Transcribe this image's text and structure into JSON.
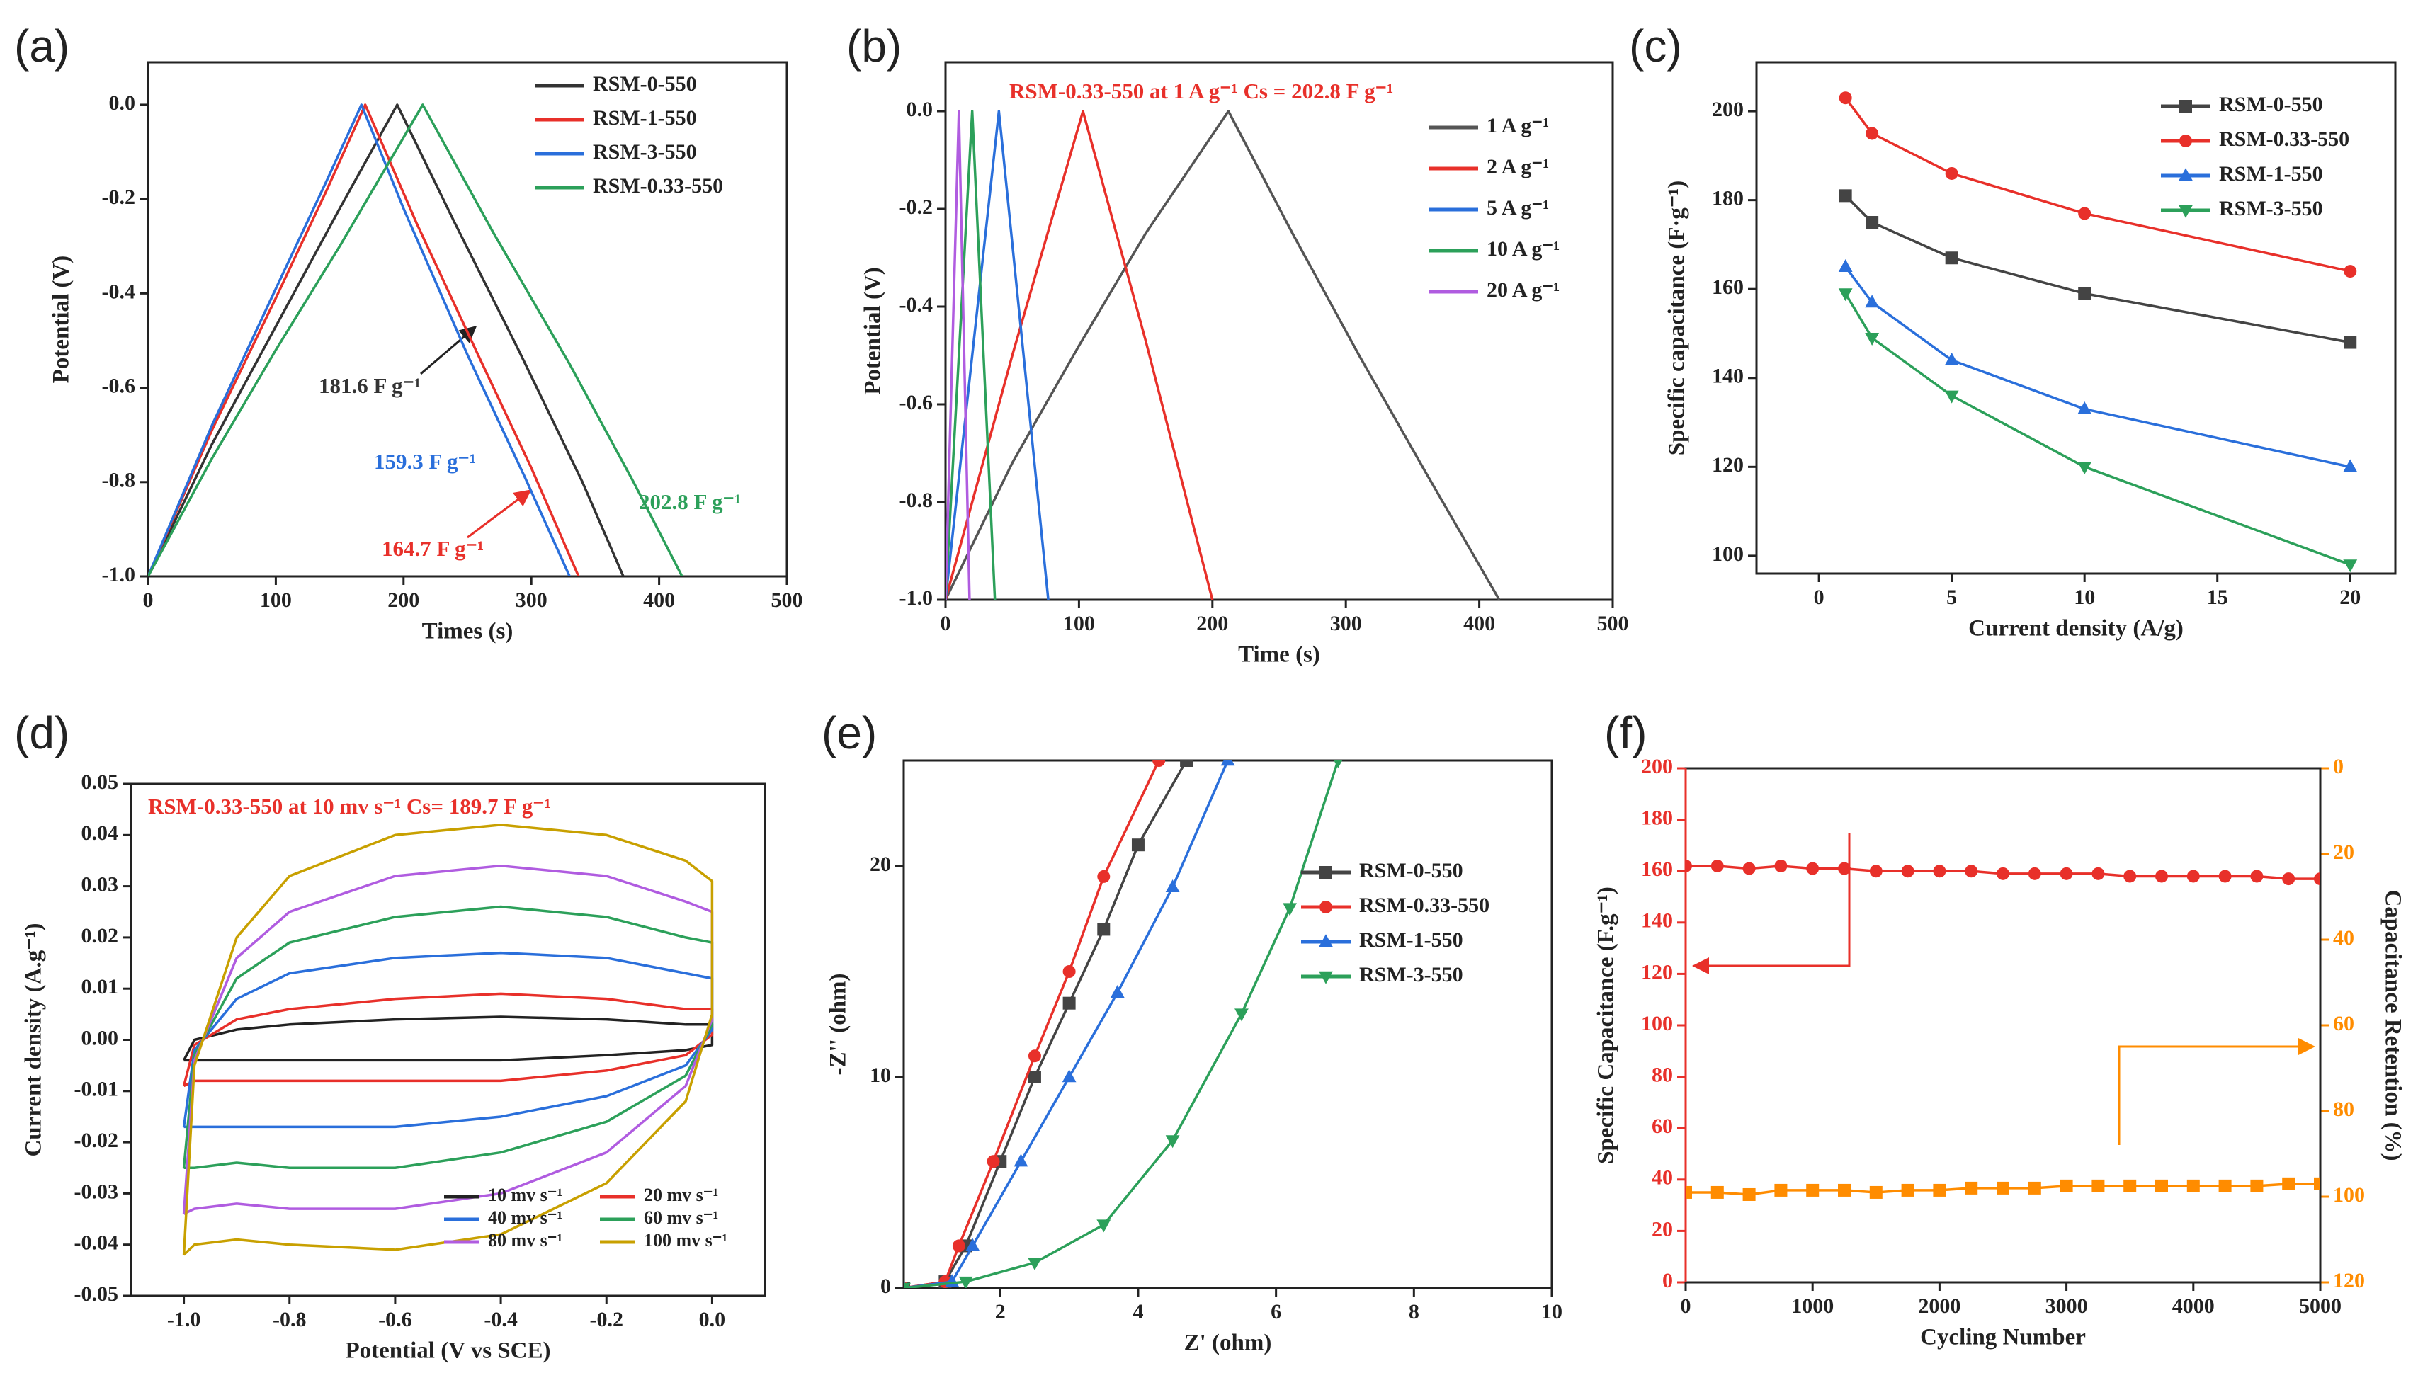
{
  "chart_data": [
    {
      "type": "line",
      "label": "(a)",
      "xlabel": "Times (s)",
      "ylabel": "Potential (V)",
      "xlim": [
        0,
        500
      ],
      "xticks": [
        0,
        100,
        200,
        300,
        400,
        500
      ],
      "ylim": [
        -1.0,
        0.09
      ],
      "yticks": [
        {
          "value": -1.0,
          "label": "-1.0"
        },
        -0.8,
        -0.6,
        -0.4,
        -0.2,
        {
          "value": 0,
          "label": "0.0"
        }
      ],
      "series": [
        {
          "name": "RSM-0-550",
          "color": "#333333",
          "x": [
            0,
            50,
            100,
            150,
            195,
            240,
            290,
            340,
            372
          ],
          "values": [
            -1,
            -0.72,
            -0.47,
            -0.22,
            0,
            -0.25,
            -0.52,
            -0.8,
            -1
          ]
        },
        {
          "name": "RSM-1-550",
          "color": "#e8302a",
          "x": [
            0,
            50,
            100,
            140,
            170,
            210,
            260,
            300,
            337
          ],
          "values": [
            -1,
            -0.69,
            -0.41,
            -0.18,
            0,
            -0.25,
            -0.54,
            -0.77,
            -1
          ]
        },
        {
          "name": "RSM-3-550",
          "color": "#2a6fdb",
          "x": [
            0,
            50,
            100,
            140,
            167,
            200,
            250,
            295,
            330
          ],
          "values": [
            -1,
            -0.68,
            -0.39,
            -0.16,
            0,
            -0.22,
            -0.53,
            -0.79,
            -1
          ]
        },
        {
          "name": "RSM-0.33-550",
          "color": "#2ca05a",
          "x": [
            0,
            50,
            100,
            150,
            215,
            270,
            330,
            380,
            418
          ],
          "values": [
            -1,
            -0.75,
            -0.52,
            -0.3,
            0,
            -0.27,
            -0.55,
            -0.8,
            -1
          ]
        }
      ],
      "annotations": [
        {
          "text": "181.6 F g⁻¹",
          "color": "#333333"
        },
        {
          "text": "159.3 F g⁻¹",
          "color": "#2a6fdb"
        },
        {
          "text": "164.7 F g⁻¹",
          "color": "#e8302a"
        },
        {
          "text": "202.8 F g⁻¹",
          "color": "#2ca05a"
        }
      ]
    },
    {
      "type": "line",
      "label": "(b)",
      "xlabel": "Time (s)",
      "ylabel": "Potential (V)",
      "xlim": [
        0,
        500
      ],
      "xticks": [
        0,
        100,
        200,
        300,
        400,
        500
      ],
      "ylim": [
        -1.0,
        0.1
      ],
      "yticks": [
        {
          "value": -1.0,
          "label": "-1.0"
        },
        -0.8,
        -0.6,
        -0.4,
        -0.2,
        {
          "value": 0,
          "label": "0.0"
        }
      ],
      "series": [
        {
          "name": "1 A g⁻¹",
          "color": "#555555",
          "x": [
            0,
            50,
            100,
            150,
            212,
            260,
            310,
            360,
            415
          ],
          "values": [
            -1,
            -0.72,
            -0.48,
            -0.25,
            0,
            -0.25,
            -0.5,
            -0.74,
            -1
          ]
        },
        {
          "name": "2 A g⁻¹",
          "color": "#e8302a",
          "x": [
            0,
            50,
            103,
            150,
            200
          ],
          "values": [
            -1,
            -0.5,
            0,
            -0.47,
            -1
          ]
        },
        {
          "name": "5 A g⁻¹",
          "color": "#2a6fdb",
          "x": [
            0,
            40,
            77
          ],
          "values": [
            -1,
            0,
            -1
          ]
        },
        {
          "name": "10 A g⁻¹",
          "color": "#2ca05a",
          "x": [
            0,
            20,
            37
          ],
          "values": [
            -1,
            0,
            -1
          ]
        },
        {
          "name": "20 A g⁻¹",
          "color": "#b05ce0",
          "x": [
            0,
            10,
            18
          ],
          "values": [
            -1,
            0,
            -1
          ]
        }
      ],
      "annotations": [
        {
          "text": "RSM-0.33-550 at 1 A g⁻¹  Cs = 202.8 F g⁻¹",
          "color": "#e8302a"
        }
      ]
    },
    {
      "type": "line",
      "label": "(c)",
      "xlabel": "Current density (A/g)",
      "ylabel": "Specific capacitance (F·g⁻¹)",
      "xlim": [
        -2.35,
        21.7
      ],
      "xticks": [
        0,
        5,
        10,
        15,
        20
      ],
      "ylim": [
        96,
        211
      ],
      "yticks": [
        100,
        120,
        140,
        160,
        180,
        200
      ],
      "x": [
        1,
        2,
        5,
        10,
        20
      ],
      "series": [
        {
          "name": "RSM-0-550",
          "color": "#444444",
          "marker": "square",
          "values": [
            181,
            175,
            167,
            159,
            148
          ]
        },
        {
          "name": "RSM-0.33-550",
          "color": "#e8302a",
          "marker": "circle",
          "values": [
            203,
            195,
            186,
            177,
            164
          ]
        },
        {
          "name": "RSM-1-550",
          "color": "#2a6fdb",
          "marker": "triangle",
          "values": [
            165,
            157,
            144,
            133,
            120
          ]
        },
        {
          "name": "RSM-3-550",
          "color": "#2ca05a",
          "marker": "triangle-down",
          "values": [
            159,
            149,
            136,
            120,
            98
          ]
        }
      ]
    },
    {
      "type": "line",
      "label": "(d)",
      "xlabel": "Potential (V vs SCE)",
      "ylabel": "Current density (A.g⁻¹)",
      "xlim": [
        -1.1,
        0.1
      ],
      "xticks": [
        {
          "value": -1.0,
          "label": "-1.0"
        },
        -0.8,
        -0.6,
        -0.4,
        -0.2,
        {
          "value": 0,
          "label": "0.0"
        }
      ],
      "ylim": [
        -0.05,
        0.05
      ],
      "yticks": [
        -0.05,
        -0.04,
        -0.03,
        -0.02,
        -0.01,
        {
          "value": 0,
          "label": "0.00"
        },
        0.01,
        0.02,
        0.03,
        0.04,
        0.05
      ],
      "legend_columns": 2,
      "x": [
        -1.0,
        -0.98,
        -0.9,
        -0.8,
        -0.6,
        -0.4,
        -0.2,
        -0.05,
        0.0,
        0.0,
        -0.05,
        -0.2,
        -0.4,
        -0.6,
        -0.8,
        -0.9,
        -0.98,
        -1.0
      ],
      "series": [
        {
          "name": "10 mv s⁻¹",
          "color": "#222222",
          "values": [
            -0.004,
            0.0,
            0.002,
            0.003,
            0.004,
            0.0045,
            0.004,
            0.003,
            0.003,
            -0.001,
            -0.002,
            -0.003,
            -0.004,
            -0.004,
            -0.004,
            -0.004,
            -0.004,
            -0.004
          ]
        },
        {
          "name": "20 mv s⁻¹",
          "color": "#e8302a",
          "values": [
            -0.009,
            -0.001,
            0.004,
            0.006,
            0.008,
            0.009,
            0.008,
            0.006,
            0.006,
            0.001,
            -0.003,
            -0.006,
            -0.008,
            -0.008,
            -0.008,
            -0.008,
            -0.008,
            -0.009
          ]
        },
        {
          "name": "40 mv s⁻¹",
          "color": "#2a6fdb",
          "values": [
            -0.017,
            -0.002,
            0.008,
            0.013,
            0.016,
            0.017,
            0.016,
            0.013,
            0.012,
            0.002,
            -0.005,
            -0.011,
            -0.015,
            -0.017,
            -0.017,
            -0.017,
            -0.017,
            -0.017
          ]
        },
        {
          "name": "60 mv s⁻¹",
          "color": "#2ca05a",
          "values": [
            -0.025,
            -0.003,
            0.012,
            0.019,
            0.024,
            0.026,
            0.024,
            0.02,
            0.019,
            0.003,
            -0.007,
            -0.016,
            -0.022,
            -0.025,
            -0.025,
            -0.024,
            -0.025,
            -0.025
          ]
        },
        {
          "name": "80 mv s⁻¹",
          "color": "#b05ce0",
          "values": [
            -0.034,
            -0.004,
            0.016,
            0.025,
            0.032,
            0.034,
            0.032,
            0.027,
            0.025,
            0.004,
            -0.009,
            -0.022,
            -0.03,
            -0.033,
            -0.033,
            -0.032,
            -0.033,
            -0.034
          ]
        },
        {
          "name": "100 mv s⁻¹",
          "color": "#c8a000",
          "values": [
            -0.042,
            -0.005,
            0.02,
            0.032,
            0.04,
            0.042,
            0.04,
            0.035,
            0.031,
            0.005,
            -0.012,
            -0.028,
            -0.038,
            -0.041,
            -0.04,
            -0.039,
            -0.04,
            -0.042
          ]
        }
      ],
      "annotations": [
        {
          "text": "RSM-0.33-550 at 10 mv s⁻¹  Cs= 189.7  F g⁻¹",
          "color": "#e8302a"
        }
      ]
    },
    {
      "type": "line",
      "label": "(e)",
      "xlabel": "Z' (ohm)",
      "ylabel": "-Z'' (ohm)",
      "xlim": [
        0.6,
        10
      ],
      "xticks": [
        2,
        4,
        6,
        8,
        10
      ],
      "ylim": [
        0,
        25
      ],
      "yticks": [
        0,
        10,
        20
      ],
      "series": [
        {
          "name": "RSM-0-550",
          "color": "#444444",
          "marker": "square",
          "x": [
            0.6,
            1.2,
            1.5,
            2,
            2.5,
            3,
            3.5,
            4,
            4.7
          ],
          "values": [
            0,
            0.3,
            2,
            6,
            10,
            13.5,
            17,
            21,
            25
          ]
        },
        {
          "name": "RSM-0.33-550",
          "color": "#e8302a",
          "marker": "circle",
          "x": [
            0.6,
            1.2,
            1.4,
            1.9,
            2.5,
            3,
            3.5,
            4.3
          ],
          "values": [
            0,
            0.3,
            2,
            6,
            11,
            15,
            19.5,
            25
          ]
        },
        {
          "name": "RSM-1-550",
          "color": "#2a6fdb",
          "marker": "triangle",
          "x": [
            0.6,
            1.3,
            1.6,
            2.3,
            3,
            3.7,
            4.5,
            5.3
          ],
          "values": [
            0,
            0.3,
            2,
            6,
            10,
            14,
            19,
            25
          ]
        },
        {
          "name": "RSM-3-550",
          "color": "#2ca05a",
          "marker": "triangle-down",
          "x": [
            0.6,
            1.5,
            2.5,
            3.5,
            4.5,
            5.5,
            6.2,
            6.9
          ],
          "values": [
            0,
            0.3,
            1.2,
            3,
            7,
            13,
            18,
            25
          ]
        }
      ]
    },
    {
      "type": "line",
      "label": "(f)",
      "xlabel": "Cycling Number",
      "ylabel": "Specific Capacitance (F.g⁻¹)",
      "y2label": "Capacitance Retention (%)",
      "xlim": [
        0,
        5000
      ],
      "xticks": [
        0,
        1000,
        2000,
        3000,
        4000,
        5000
      ],
      "ylim": [
        0,
        200
      ],
      "yticks": [
        0,
        20,
        40,
        60,
        80,
        100,
        120,
        140,
        160,
        180,
        200
      ],
      "y_color": "#e8302a",
      "y2lim": [
        120,
        0
      ],
      "y2ticks": [
        0,
        20,
        40,
        60,
        80,
        100,
        120
      ],
      "y2_color": "#ff8c00",
      "x": [
        0,
        250,
        500,
        750,
        1000,
        1250,
        1500,
        1750,
        2000,
        2250,
        2500,
        2750,
        3000,
        3250,
        3500,
        3750,
        4000,
        4250,
        4500,
        4750,
        5000
      ],
      "series": [
        {
          "color": "#e8302a",
          "marker": "circle",
          "values": [
            162,
            162,
            161,
            162,
            161,
            161,
            160,
            160,
            160,
            160,
            159,
            159,
            159,
            159,
            158,
            158,
            158,
            158,
            158,
            157,
            157
          ]
        },
        {
          "color": "#ff8c00",
          "marker": "square",
          "axis": "y2",
          "values": [
            99,
            99,
            99.5,
            98.5,
            98.5,
            98.5,
            99,
            98.5,
            98.5,
            98,
            98,
            98,
            97.5,
            97.5,
            97.5,
            97.5,
            97.5,
            97.5,
            97.5,
            97,
            97
          ]
        }
      ]
    }
  ]
}
